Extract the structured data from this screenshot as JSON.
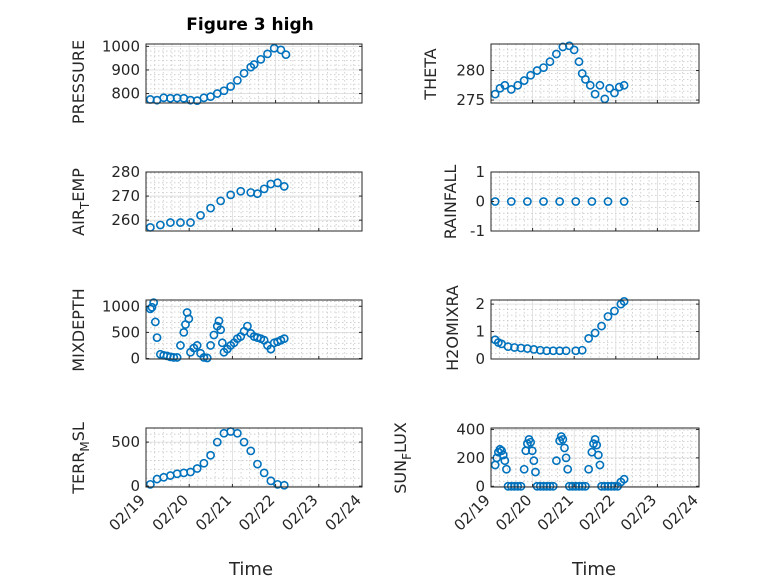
{
  "figure": {
    "title": "Figure 3 high",
    "colors": {
      "marker": "#0072BD",
      "axis": "#262626",
      "grid_major": "#dcdcdc",
      "grid_minor": "#c8c8c8"
    }
  },
  "chart_data": [
    {
      "type": "scatter",
      "title": "Figure 3 high",
      "ylabel": "PRESSURE",
      "ylim": [
        760,
        1010
      ],
      "yticks": [
        "800",
        "900",
        "1000"
      ],
      "ytick_values": [
        800,
        900,
        1000
      ],
      "grid": true,
      "xticklabels_visible": false,
      "t": [
        0.0,
        0.2,
        0.4,
        0.6,
        0.8,
        1.0,
        1.2,
        1.4,
        1.6,
        1.8,
        2.0,
        2.2,
        2.4,
        2.6,
        2.8,
        3.0,
        3.1,
        3.3,
        3.5,
        3.7,
        3.9,
        4.05
      ],
      "values": [
        775,
        772,
        782,
        780,
        781,
        780,
        772,
        770,
        782,
        787,
        800,
        812,
        830,
        856,
        886,
        912,
        923,
        945,
        968,
        992,
        985,
        965
      ]
    },
    {
      "type": "scatter",
      "ylabel": "THETA",
      "ylim": [
        274.5,
        284.5
      ],
      "yticks": [
        "275",
        "280"
      ],
      "ytick_values": [
        275,
        280
      ],
      "grid": true,
      "xticklabels_visible": false,
      "t": [
        0.0,
        0.15,
        0.3,
        0.5,
        0.7,
        0.9,
        1.1,
        1.3,
        1.5,
        1.7,
        1.9,
        2.1,
        2.3,
        2.45,
        2.6,
        2.7,
        2.8,
        2.95,
        3.1,
        3.25,
        3.4,
        3.55,
        3.7,
        3.85,
        4.0
      ],
      "values": [
        276,
        277,
        277.5,
        276.8,
        277.5,
        278.3,
        279.2,
        280,
        280.5,
        281.5,
        282.8,
        284,
        284.2,
        283.5,
        281.5,
        279.5,
        278.5,
        277.5,
        276,
        277.5,
        275.2,
        277,
        276.2,
        277.2,
        277.5
      ]
    },
    {
      "type": "scatter",
      "ylabel": "AIR_TEMP",
      "ylim": [
        255.5,
        280
      ],
      "yticks": [
        "260",
        "270",
        "280"
      ],
      "ytick_values": [
        260,
        270,
        280
      ],
      "grid": true,
      "xticklabels_visible": false,
      "t": [
        0.0,
        0.3,
        0.6,
        0.9,
        1.2,
        1.5,
        1.8,
        2.1,
        2.4,
        2.7,
        3.0,
        3.2,
        3.4,
        3.6,
        3.8,
        4.0
      ],
      "values": [
        257,
        258,
        259,
        259,
        259,
        262,
        265,
        268,
        270.5,
        272,
        271.5,
        271,
        273,
        275,
        275.5,
        274
      ]
    },
    {
      "type": "scatter",
      "ylabel": "RAINFALL",
      "ylim": [
        -1,
        1
      ],
      "yticks": [
        "-1",
        "0",
        "1"
      ],
      "ytick_values": [
        -1,
        0,
        1
      ],
      "grid": true,
      "xticklabels_visible": false,
      "t": [
        0.0,
        0.5,
        1.0,
        1.5,
        2.0,
        2.5,
        3.0,
        3.5,
        4.0
      ],
      "values": [
        0,
        0,
        0,
        0,
        0,
        0,
        0,
        0,
        0
      ]
    },
    {
      "type": "scatter",
      "ylabel": "MIXDEPTH",
      "ylim": [
        -10,
        1120
      ],
      "yticks": [
        "0",
        "500",
        "1000"
      ],
      "ytick_values": [
        0,
        500,
        1000
      ],
      "grid": true,
      "xticklabels_visible": false,
      "t": [
        0.0,
        0.05,
        0.1,
        0.15,
        0.2,
        0.3,
        0.4,
        0.5,
        0.6,
        0.7,
        0.8,
        0.9,
        1.0,
        1.05,
        1.1,
        1.15,
        1.2,
        1.3,
        1.4,
        1.5,
        1.6,
        1.7,
        1.8,
        1.9,
        2.0,
        2.05,
        2.1,
        2.15,
        2.2,
        2.3,
        2.4,
        2.5,
        2.6,
        2.7,
        2.8,
        2.9,
        3.0,
        3.1,
        3.2,
        3.3,
        3.4,
        3.5,
        3.6,
        3.7,
        3.8,
        3.9,
        4.0
      ],
      "values": [
        950,
        980,
        1070,
        700,
        400,
        80,
        60,
        50,
        30,
        20,
        20,
        250,
        500,
        650,
        880,
        760,
        120,
        200,
        250,
        100,
        20,
        10,
        250,
        450,
        620,
        720,
        550,
        300,
        120,
        180,
        250,
        300,
        380,
        420,
        520,
        620,
        480,
        420,
        400,
        380,
        350,
        250,
        180,
        300,
        320,
        350,
        380
      ]
    },
    {
      "type": "scatter",
      "ylabel": "H2OMIXRA",
      "ylim": [
        0,
        2.15
      ],
      "yticks": [
        "0",
        "1",
        "2"
      ],
      "ytick_values": [
        0,
        1,
        2
      ],
      "grid": true,
      "xticklabels_visible": false,
      "t": [
        0.0,
        0.1,
        0.2,
        0.4,
        0.6,
        0.8,
        1.0,
        1.2,
        1.4,
        1.6,
        1.8,
        2.0,
        2.2,
        2.5,
        2.7,
        2.9,
        3.1,
        3.3,
        3.5,
        3.7,
        3.9,
        4.0
      ],
      "values": [
        0.7,
        0.6,
        0.55,
        0.45,
        0.42,
        0.4,
        0.38,
        0.35,
        0.32,
        0.3,
        0.3,
        0.3,
        0.3,
        0.3,
        0.32,
        0.75,
        0.95,
        1.2,
        1.55,
        1.75,
        2.0,
        2.1
      ]
    },
    {
      "type": "scatter",
      "ylabel": "TERR_MSL",
      "ylim": [
        -10,
        660
      ],
      "yticks": [
        "0",
        "500"
      ],
      "ytick_values": [
        0,
        500
      ],
      "grid": true,
      "xticklabels_visible": true,
      "t": [
        0.0,
        0.2,
        0.4,
        0.6,
        0.8,
        1.0,
        1.2,
        1.4,
        1.6,
        1.8,
        2.0,
        2.2,
        2.4,
        2.6,
        2.8,
        3.0,
        3.2,
        3.4,
        3.6,
        3.8,
        4.0
      ],
      "values": [
        20,
        80,
        100,
        120,
        140,
        150,
        160,
        200,
        260,
        350,
        500,
        600,
        620,
        600,
        500,
        400,
        250,
        150,
        60,
        20,
        10
      ]
    },
    {
      "type": "scatter",
      "ylabel": "SUN_FLUX",
      "ylim": [
        -5,
        410
      ],
      "yticks": [
        "0",
        "200",
        "400"
      ],
      "ytick_values": [
        0,
        200,
        400
      ],
      "grid": true,
      "xticklabels_visible": true,
      "t": [
        0.0,
        0.05,
        0.1,
        0.15,
        0.2,
        0.25,
        0.3,
        0.35,
        0.4,
        0.5,
        0.6,
        0.7,
        0.8,
        0.9,
        0.95,
        1.0,
        1.05,
        1.1,
        1.15,
        1.2,
        1.25,
        1.3,
        1.4,
        1.5,
        1.6,
        1.7,
        1.8,
        1.9,
        2.0,
        2.05,
        2.1,
        2.15,
        2.2,
        2.25,
        2.3,
        2.4,
        2.5,
        2.6,
        2.7,
        2.8,
        2.9,
        3.0,
        3.05,
        3.1,
        3.15,
        3.2,
        3.25,
        3.3,
        3.4,
        3.5,
        3.6,
        3.7,
        3.8,
        3.9,
        4.0
      ],
      "values": [
        150,
        200,
        240,
        260,
        250,
        220,
        180,
        120,
        0,
        0,
        0,
        0,
        0,
        120,
        250,
        300,
        330,
        310,
        250,
        180,
        100,
        0,
        0,
        0,
        0,
        0,
        0,
        180,
        320,
        350,
        330,
        270,
        200,
        120,
        0,
        0,
        0,
        0,
        0,
        0,
        120,
        240,
        300,
        330,
        290,
        220,
        150,
        0,
        0,
        0,
        0,
        0,
        0,
        30,
        50
      ]
    }
  ],
  "x_axis": {
    "xlabel": "Time",
    "ticks": [
      "02/19",
      "02/20",
      "02/21",
      "02/22",
      "02/23",
      "02/24"
    ],
    "data_start": 0.1,
    "data_span": 3.1
  }
}
